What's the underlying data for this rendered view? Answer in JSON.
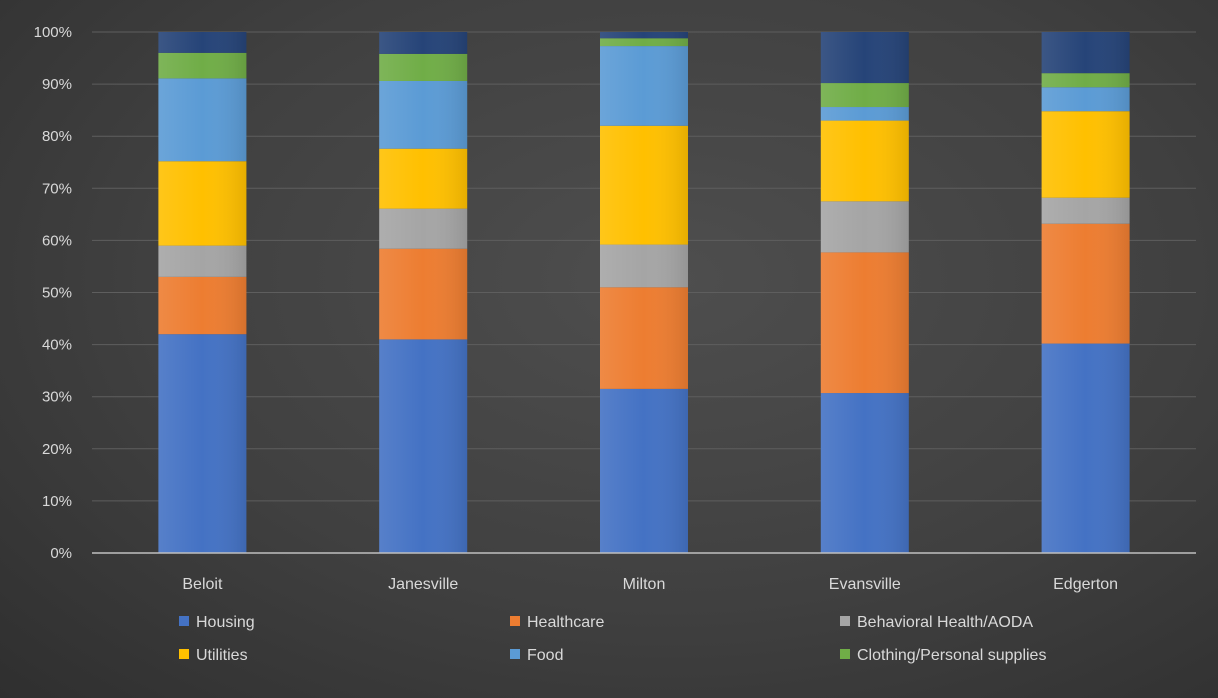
{
  "chart_data": {
    "type": "bar",
    "stacked": true,
    "percent": true,
    "categories": [
      "Beloit",
      "Janesville",
      "Milton",
      "Evansville",
      "Edgerton"
    ],
    "ylim": [
      0,
      100
    ],
    "yticks": [
      "0%",
      "10%",
      "20%",
      "30%",
      "40%",
      "50%",
      "60%",
      "70%",
      "80%",
      "90%",
      "100%"
    ],
    "grid": true,
    "legend_position": "bottom",
    "series": [
      {
        "name": "Housing",
        "color": "#4472C4",
        "values": [
          42,
          41,
          31.5,
          30.7,
          40.2
        ]
      },
      {
        "name": "Healthcare",
        "color": "#ED7D31",
        "values": [
          11,
          17.4,
          19.5,
          27,
          23
        ]
      },
      {
        "name": "Behavioral Health/AODA",
        "color": "#A5A5A5",
        "values": [
          6,
          7.7,
          8.2,
          9.8,
          5
        ]
      },
      {
        "name": "Utilities",
        "color": "#FFC000",
        "values": [
          16.2,
          11.5,
          22.8,
          15.5,
          16.6
        ]
      },
      {
        "name": "Food",
        "color": "#5B9BD5",
        "values": [
          15.9,
          13,
          15.3,
          2.6,
          4.6
        ]
      },
      {
        "name": "Clothing/Personal supplies",
        "color": "#70AD47",
        "values": [
          4.9,
          5.2,
          1.5,
          4.6,
          2.7
        ]
      },
      {
        "name": "",
        "color": "#264478",
        "values": [
          4,
          4.2,
          1.2,
          9.8,
          7.9
        ]
      }
    ]
  }
}
